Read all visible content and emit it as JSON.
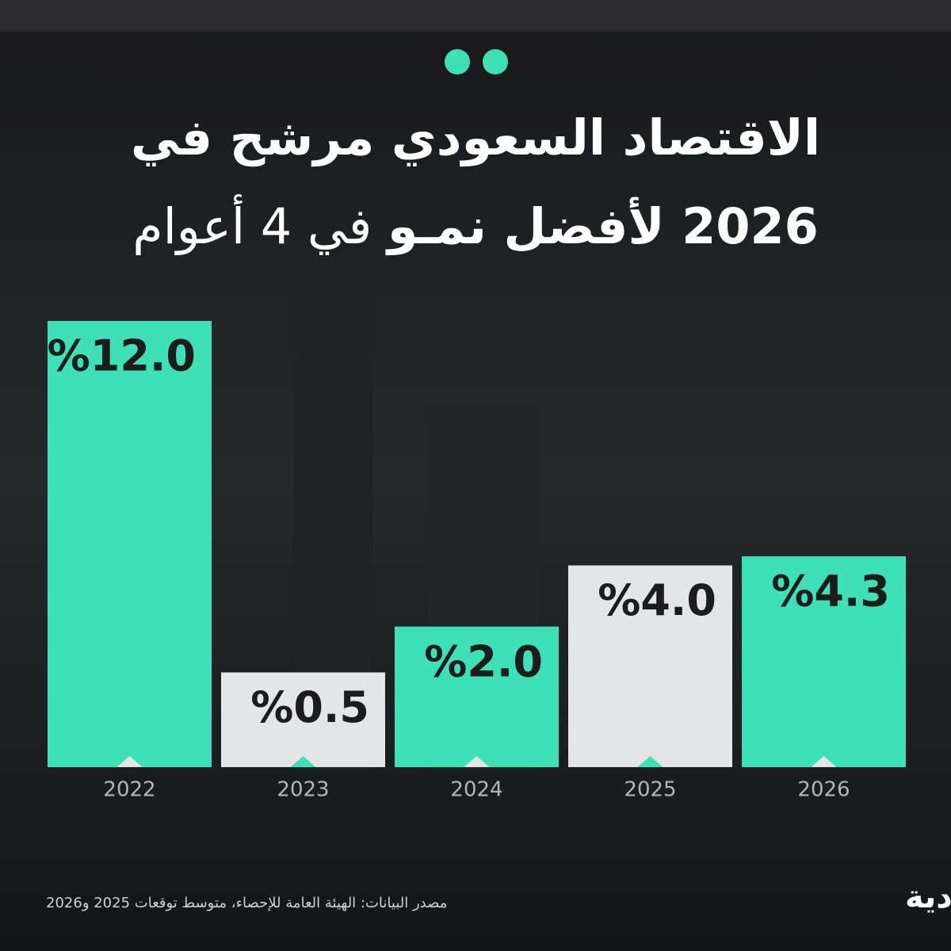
{
  "chart_data": {
    "type": "bar",
    "title_lines": [
      "الاقتصاد السعودي مرشح في",
      "2026 لأفضل نمـو",
      "في 4 أعوام"
    ],
    "categories": [
      "2022",
      "2023",
      "2024",
      "2025",
      "2026"
    ],
    "values": [
      12.0,
      0.5,
      2.0,
      4.0,
      4.3
    ],
    "value_labels": [
      "%12.0",
      "%0.5",
      "%2.0",
      "%4.0",
      "%4.3"
    ],
    "colors": [
      "#3ee0b8",
      "#e4e5e9",
      "#3ee0b8",
      "#e4e5e9",
      "#3ee0b8"
    ],
    "ylim": [
      -2.6,
      12
    ],
    "source": "مصدر البيانات: الهيئة العامة للإحصاء، متوسط توقعات 2025 و2026",
    "logo": "الاقتصادية"
  }
}
